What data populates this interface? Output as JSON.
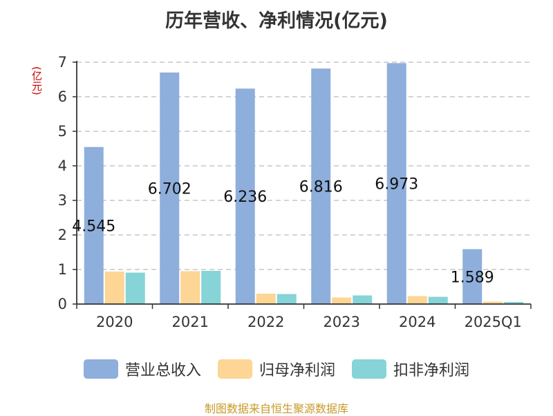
{
  "chart_data": {
    "type": "bar",
    "title": "历年营收、净利情况(亿元)",
    "unit": "(亿元)",
    "categories": [
      "2020",
      "2021",
      "2022",
      "2023",
      "2024",
      "2025Q1"
    ],
    "series": [
      {
        "name": "营业总收入",
        "color": "#8eaedc",
        "values": [
          4.545,
          6.702,
          6.236,
          6.816,
          6.973,
          1.589
        ]
      },
      {
        "name": "归母净利润",
        "color": "#fdd594",
        "values": [
          0.94,
          0.95,
          0.3,
          0.19,
          0.23,
          0.07
        ]
      },
      {
        "name": "扣非净利润",
        "color": "#86d4d7",
        "values": [
          0.91,
          0.96,
          0.29,
          0.25,
          0.21,
          0.06
        ]
      }
    ],
    "data_labels": [
      "4.545",
      "6.702",
      "6.236",
      "6.816",
      "6.973",
      "1.589"
    ],
    "y_ticks": [
      "0",
      "1",
      "2",
      "3",
      "4",
      "5",
      "6",
      "7"
    ],
    "ylim": [
      0,
      7
    ],
    "grid": "horizontal-dashed",
    "legend_position": "bottom"
  },
  "source": "制图数据来自恒生聚源数据库"
}
